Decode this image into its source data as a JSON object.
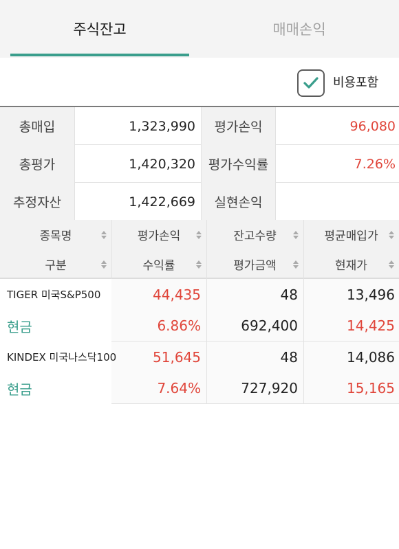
{
  "tabs": {
    "active": "주식잔고",
    "inactive": "매매손익"
  },
  "options": {
    "include_costs_label": "비용포함",
    "include_costs_checked": true
  },
  "summary": {
    "rows": [
      {
        "label1": "총매입",
        "value1": "1,323,990",
        "label2": "평가손익",
        "value2": "96,080"
      },
      {
        "label1": "총평가",
        "value1": "1,420,320",
        "label2": "평가수익률",
        "value2": "7.26%"
      },
      {
        "label1": "추정자산",
        "value1": "1,422,669",
        "label2": "실현손익",
        "value2": ""
      }
    ]
  },
  "holdings": {
    "headers": {
      "top": [
        "종목명",
        "평가손익",
        "잔고수량",
        "평균매입가"
      ],
      "bottom": [
        "구분",
        "수익률",
        "평가금액",
        "현재가"
      ]
    },
    "rows": [
      {
        "name": "TIGER 미국S&P500",
        "kind": "현금",
        "pl": "44,435",
        "rate": "6.86%",
        "qty": "48",
        "eval": "692,400",
        "avg": "13,496",
        "current": "14,425"
      },
      {
        "name": "KINDEX 미국나스닥100",
        "kind": "현금",
        "pl": "51,645",
        "rate": "7.64%",
        "qty": "48",
        "eval": "727,920",
        "avg": "14,086",
        "current": "15,165"
      }
    ]
  },
  "colors": {
    "accent": "#3a9e8c",
    "positive": "#e0453a"
  }
}
